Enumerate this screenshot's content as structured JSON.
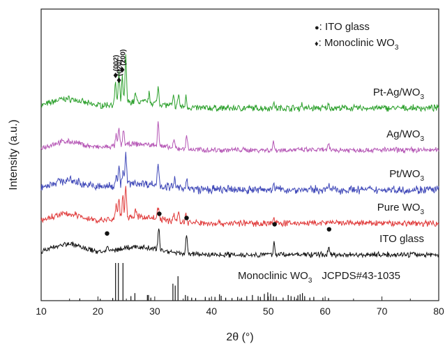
{
  "chart_data": {
    "type": "line",
    "xlabel": "2θ (°)",
    "ylabel": "Intensity (a.u.)",
    "xlim": [
      10,
      80
    ],
    "xticks": [
      10,
      20,
      30,
      40,
      50,
      60,
      70,
      80
    ],
    "yticks_shown": false,
    "grid": false,
    "legend": {
      "position": "top-right",
      "entries": [
        {
          "marker": "●",
          "text": ": ITO glass",
          "marker_name": "circle"
        },
        {
          "marker": "♦",
          "text": ": Monoclinic  WO",
          "subscript": "3",
          "marker_name": "diamond"
        }
      ]
    },
    "series": [
      {
        "name": "Pt-Ag/WO",
        "subscript": "3",
        "color": "#2ca02c",
        "baseline": 4.0,
        "noise": 0.06,
        "hump": 0.22,
        "peaks": [
          [
            23.1,
            0.5
          ],
          [
            23.7,
            0.7
          ],
          [
            24.3,
            0.6
          ],
          [
            24.9,
            1.1
          ],
          [
            26.6,
            0.2
          ],
          [
            29.0,
            0.2
          ],
          [
            30.6,
            0.4
          ],
          [
            33.3,
            0.22
          ],
          [
            34.2,
            0.3
          ],
          [
            35.5,
            0.25
          ],
          [
            50.9,
            0.15
          ],
          [
            55.9,
            0.1
          ],
          [
            60.6,
            0.08
          ]
        ]
      },
      {
        "name": "Ag/WO",
        "subscript": "3",
        "color": "#b556b5",
        "baseline": 3.0,
        "noise": 0.05,
        "hump": 0.2,
        "peaks": [
          [
            23.2,
            0.25
          ],
          [
            23.7,
            0.4
          ],
          [
            24.5,
            0.4
          ],
          [
            30.6,
            0.6
          ],
          [
            33.4,
            0.18
          ],
          [
            35.6,
            0.35
          ],
          [
            50.9,
            0.18
          ],
          [
            60.6,
            0.12
          ]
        ]
      },
      {
        "name": "Pt/WO",
        "subscript": "3",
        "color": "#3f48b8",
        "baseline": 2.05,
        "noise": 0.08,
        "hump": 0.22,
        "peaks": [
          [
            23.2,
            0.3
          ],
          [
            23.7,
            0.45
          ],
          [
            24.4,
            0.35
          ],
          [
            24.9,
            0.75
          ],
          [
            30.6,
            0.6
          ],
          [
            33.5,
            0.2
          ],
          [
            35.6,
            0.3
          ],
          [
            50.9,
            0.2
          ],
          [
            60.6,
            0.12
          ]
        ]
      },
      {
        "name": "Pure WO",
        "subscript": "3",
        "color": "#e03a3a",
        "baseline": 1.25,
        "noise": 0.06,
        "hump": 0.22,
        "peaks": [
          [
            23.2,
            0.35
          ],
          [
            23.7,
            0.5
          ],
          [
            24.4,
            0.5
          ],
          [
            24.9,
            0.8
          ],
          [
            26.6,
            0.15
          ],
          [
            30.6,
            0.3
          ],
          [
            33.4,
            0.2
          ],
          [
            34.2,
            0.25
          ],
          [
            35.5,
            0.2
          ],
          [
            50.9,
            0.12
          ],
          [
            60.6,
            0.08
          ]
        ]
      },
      {
        "name": "ITO glass",
        "subscript": "",
        "color": "#111111",
        "baseline": 0.3,
        "noise": 0.05,
        "hump": 0.25,
        "peaks": [
          [
            21.6,
            0.08
          ],
          [
            30.7,
            0.55
          ],
          [
            35.6,
            0.45
          ],
          [
            51.0,
            0.3
          ],
          [
            60.6,
            0.18
          ]
        ]
      }
    ],
    "ito_peak_markers_x": [
      21.6,
      30.8,
      35.6,
      51.1,
      60.7
    ],
    "hkl_annotations": [
      {
        "label": "(002)",
        "x": 23.1
      },
      {
        "label": "(020)",
        "x": 23.7
      },
      {
        "label": "(200)",
        "x": 24.3
      }
    ],
    "reference": {
      "label_main": "Monoclinic  WO",
      "label_sub": "3",
      "label_card": "JCPDS#43-1035",
      "sticks": [
        [
          16.8,
          0.06
        ],
        [
          20.4,
          0.05
        ],
        [
          22.6,
          0.07
        ],
        [
          23.1,
          1.0
        ],
        [
          23.6,
          1.0
        ],
        [
          24.4,
          1.0
        ],
        [
          25.8,
          0.12
        ],
        [
          26.5,
          0.2
        ],
        [
          28.7,
          0.15
        ],
        [
          28.9,
          0.15
        ],
        [
          29.3,
          0.08
        ],
        [
          33.2,
          0.45
        ],
        [
          33.6,
          0.4
        ],
        [
          34.1,
          0.65
        ],
        [
          35.4,
          0.15
        ],
        [
          35.8,
          0.12
        ],
        [
          36.5,
          0.08
        ],
        [
          37.2,
          0.07
        ],
        [
          38.9,
          0.1
        ],
        [
          39.6,
          0.08
        ],
        [
          40.6,
          0.1
        ],
        [
          41.4,
          0.17
        ],
        [
          41.7,
          0.13
        ],
        [
          42.5,
          0.08
        ],
        [
          43.6,
          0.07
        ],
        [
          44.6,
          0.1
        ],
        [
          45.3,
          0.08
        ],
        [
          46.2,
          0.12
        ],
        [
          47.2,
          0.15
        ],
        [
          48.2,
          0.12
        ],
        [
          48.6,
          0.1
        ],
        [
          49.3,
          0.18
        ],
        [
          49.9,
          0.22
        ],
        [
          50.4,
          0.18
        ],
        [
          50.9,
          0.12
        ],
        [
          51.4,
          0.1
        ],
        [
          52.6,
          0.08
        ],
        [
          53.5,
          0.15
        ],
        [
          54.0,
          0.12
        ],
        [
          54.6,
          0.1
        ],
        [
          55.2,
          0.14
        ],
        [
          55.6,
          0.17
        ],
        [
          56.0,
          0.2
        ],
        [
          56.4,
          0.12
        ],
        [
          57.3,
          0.08
        ],
        [
          58.0,
          0.1
        ],
        [
          59.6,
          0.08
        ],
        [
          60.6,
          0.07
        ]
      ]
    }
  }
}
